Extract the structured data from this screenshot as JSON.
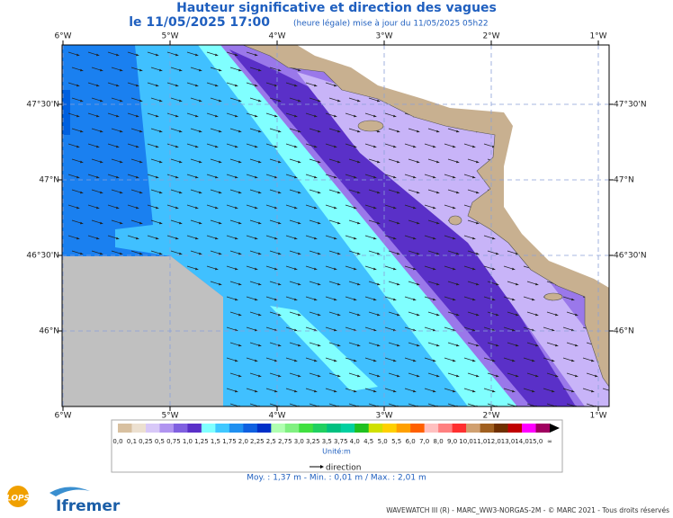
{
  "header": {
    "title": "Hauteur significative et direction des vagues",
    "date": "le 11/05/2025 17:00",
    "update": "(heure légale) mise à jour du 11/05/2025 05h22"
  },
  "axes": {
    "longitudes": [
      "6°W",
      "5°W",
      "4°W",
      "3°W",
      "2°W",
      "1°W"
    ],
    "latitudes": [
      "47°30'N",
      "47°N",
      "46°30'N",
      "46°N"
    ]
  },
  "legend": {
    "labels": [
      "0,0",
      "0,1",
      "0,25",
      "0,5",
      "0,75",
      "1,0",
      "1,25",
      "1,5",
      "1,75",
      "2,0",
      "2,25",
      "2,5",
      "2,75",
      "3,0",
      "3,25",
      "3,5",
      "3,75",
      "4,0",
      "4,5",
      "5,0",
      "5,5",
      "6,0",
      "7,0",
      "8,0",
      "9,0",
      "10,0",
      "11,0",
      "12,0",
      "13,0",
      "14,0",
      "15,0",
      "∞"
    ],
    "colors": [
      "#d8c0a0",
      "#ece0d0",
      "#d8c8f8",
      "#b094f0",
      "#8060e0",
      "#5a30c8",
      "#80ffff",
      "#40c8ff",
      "#2090f0",
      "#1060e0",
      "#0030c8",
      "#b0ffb0",
      "#80f080",
      "#40e040",
      "#20d060",
      "#00c080",
      "#00d0a0",
      "#20c020",
      "#d0e000",
      "#ffd000",
      "#ffa000",
      "#ff6000",
      "#ffc0c0",
      "#ff8080",
      "#ff3030",
      "#d0a070",
      "#a06020",
      "#703000",
      "#c00000",
      "#ff00ff",
      "#a00060"
    ],
    "unit": "Unité:m",
    "direction": "direction"
  },
  "stats": "Moy. : 1,37 m   -   Min. : 0,01 m / Max. : 2,01 m",
  "footer": {
    "logo1": "LOPS",
    "logo2": "Ifremer",
    "credits": "WAVEWATCH III (R) - MARC_WW3-NORGAS-2M - © MARC 2021 - Tous droits réservés"
  }
}
